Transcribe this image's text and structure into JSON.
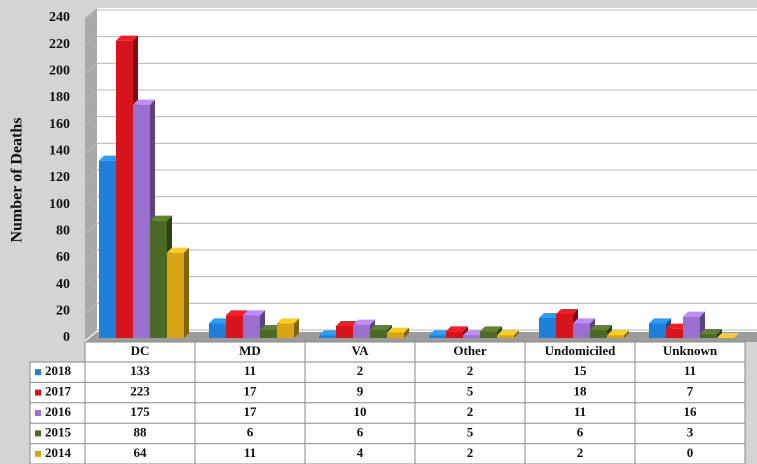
{
  "chart_data": {
    "type": "bar",
    "y_axis_label": "Number of Deaths",
    "categories": [
      "DC",
      "MD",
      "VA",
      "Other",
      "Undomiciled",
      "Unknown"
    ],
    "series": [
      {
        "name": "2018",
        "color": "#1f7fd8",
        "values": [
          133,
          11,
          2,
          2,
          15,
          11
        ]
      },
      {
        "name": "2017",
        "color": "#d6141c",
        "values": [
          223,
          17,
          9,
          5,
          18,
          7
        ]
      },
      {
        "name": "2016",
        "color": "#9a6fd0",
        "values": [
          175,
          17,
          10,
          2,
          11,
          16
        ]
      },
      {
        "name": "2015",
        "color": "#4b6a25",
        "values": [
          88,
          6,
          6,
          5,
          6,
          3
        ]
      },
      {
        "name": "2014",
        "color": "#d9a514",
        "values": [
          64,
          11,
          4,
          2,
          2,
          0
        ]
      }
    ],
    "ylim": [
      0,
      240
    ],
    "yticks": [
      0,
      20,
      40,
      60,
      80,
      100,
      120,
      140,
      160,
      180,
      200,
      220,
      240
    ],
    "grid": true
  }
}
